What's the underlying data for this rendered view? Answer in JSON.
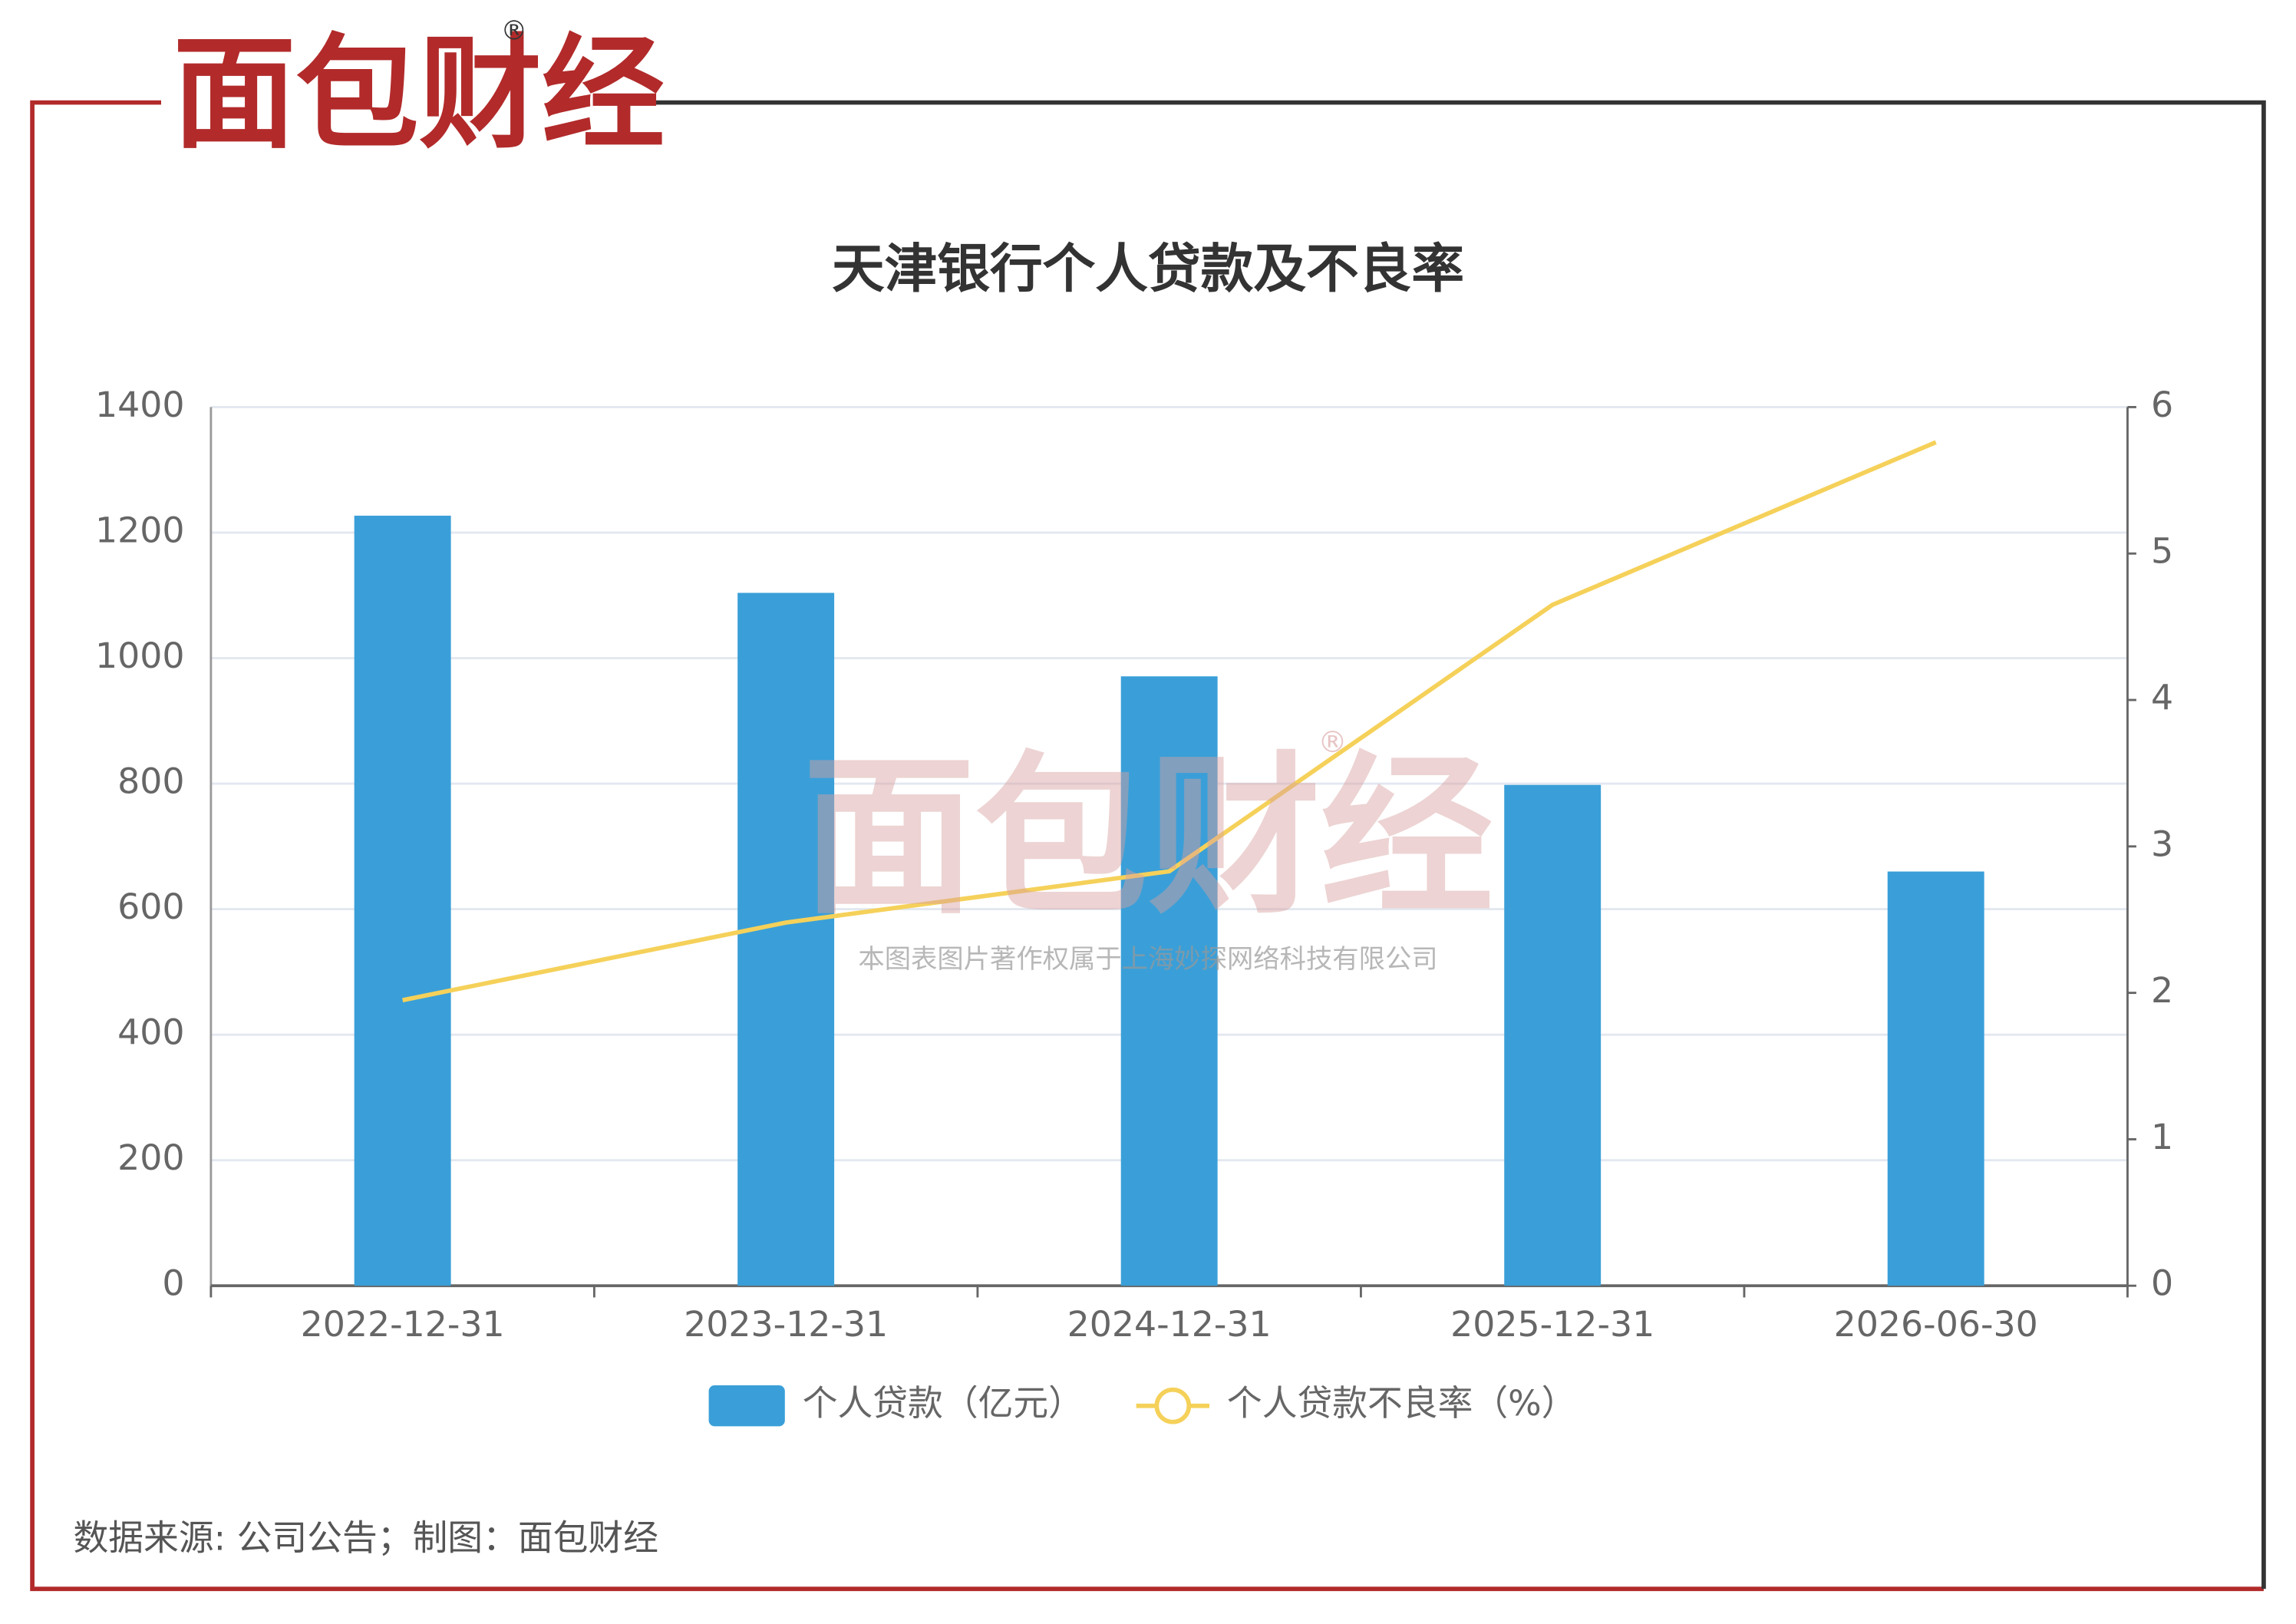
{
  "logo": "面包财经",
  "logo_mark": "®",
  "watermark": "本图表图片著作权属于上海妙探网络科技有限公司",
  "source": "数据来源: 公司公告；制图：面包财经",
  "chart_data": {
    "type": "bar",
    "title": "天津银行个人贷款及不良率",
    "categories": [
      "2022-12-31",
      "2023-12-31",
      "2024-12-31",
      "2025-12-31",
      "2026-06-30"
    ],
    "series": [
      {
        "name": "个人贷款（亿元）",
        "color": "#3a9fd8",
        "values": [
          1227,
          1104,
          971,
          798,
          660
        ]
      },
      {
        "name": "个人贷款不良率（%）",
        "type": "line",
        "axis": "y2",
        "color": "#f5d15a",
        "values": [
          1.95,
          2.48,
          2.83,
          4.65,
          5.76
        ]
      }
    ],
    "ylim": [
      0,
      1400
    ],
    "yticks": [
      0,
      200,
      400,
      600,
      800,
      1000,
      1200,
      1400
    ],
    "y2lim": [
      0,
      6
    ],
    "y2ticks": [
      0,
      1,
      2,
      3,
      4,
      5,
      6
    ],
    "grid": true,
    "legend": "bottom"
  }
}
